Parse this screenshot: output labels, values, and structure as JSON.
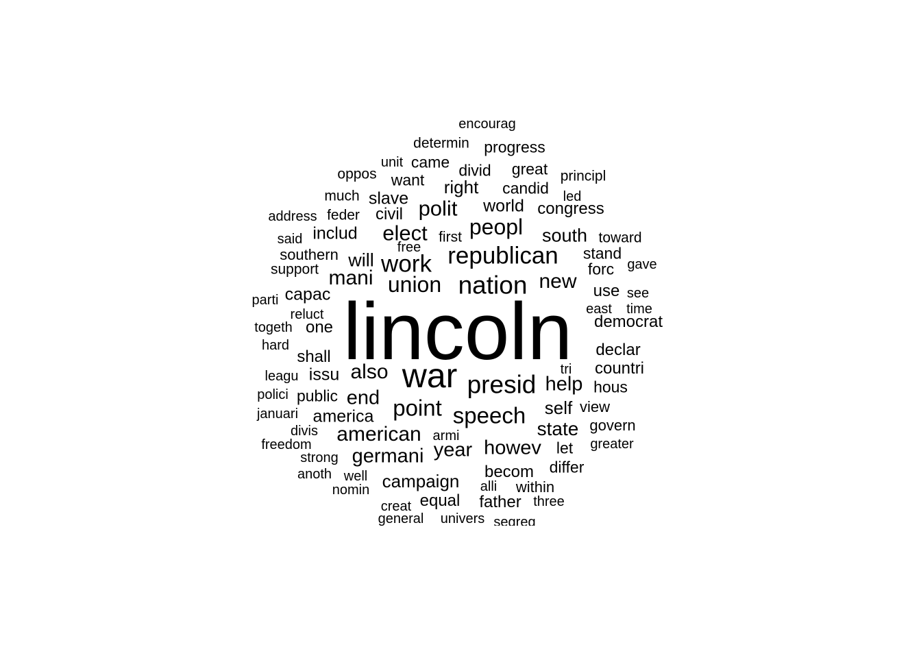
{
  "text_color": "#000000",
  "background_color": "#ffffff",
  "words": [
    {
      "text": "lincoln",
      "rank": 1
    },
    {
      "text": "war",
      "rank": 2
    },
    {
      "text": "presid",
      "rank": 3
    },
    {
      "text": "nation",
      "rank": 4
    },
    {
      "text": "republican",
      "rank": 5
    },
    {
      "text": "work",
      "rank": 6
    },
    {
      "text": "peopl",
      "rank": 7
    },
    {
      "text": "union",
      "rank": 8
    },
    {
      "text": "point",
      "rank": 9
    },
    {
      "text": "speech",
      "rank": 10
    },
    {
      "text": "elect",
      "rank": 11
    },
    {
      "text": "polit",
      "rank": 12
    },
    {
      "text": "new",
      "rank": 13
    },
    {
      "text": "mani",
      "rank": 14
    },
    {
      "text": "also",
      "rank": 15
    },
    {
      "text": "american",
      "rank": 16
    },
    {
      "text": "germani",
      "rank": 17
    },
    {
      "text": "year",
      "rank": 18
    },
    {
      "text": "howev",
      "rank": 19
    },
    {
      "text": "help",
      "rank": 20
    },
    {
      "text": "end",
      "rank": 21
    },
    {
      "text": "will",
      "rank": 22
    },
    {
      "text": "south",
      "rank": 23
    },
    {
      "text": "state",
      "rank": 24
    },
    {
      "text": "campaign",
      "rank": 25
    },
    {
      "text": "self",
      "rank": 26
    },
    {
      "text": "slave",
      "rank": 27
    },
    {
      "text": "right",
      "rank": 28
    },
    {
      "text": "world",
      "rank": 29
    },
    {
      "text": "includ",
      "rank": 30
    },
    {
      "text": "america",
      "rank": 31
    },
    {
      "text": "capac",
      "rank": 32
    },
    {
      "text": "issu",
      "rank": 33
    },
    {
      "text": "shall",
      "rank": 34
    },
    {
      "text": "one",
      "rank": 35
    },
    {
      "text": "countri",
      "rank": 36
    },
    {
      "text": "declar",
      "rank": 37
    },
    {
      "text": "democrat",
      "rank": 38
    },
    {
      "text": "becom",
      "rank": 39
    },
    {
      "text": "equal",
      "rank": 40
    },
    {
      "text": "father",
      "rank": 41
    },
    {
      "text": "civil",
      "rank": 42
    },
    {
      "text": "congress",
      "rank": 43
    },
    {
      "text": "candid",
      "rank": 44
    },
    {
      "text": "great",
      "rank": 45
    },
    {
      "text": "divid",
      "rank": 46
    },
    {
      "text": "progress",
      "rank": 47
    },
    {
      "text": "came",
      "rank": 48
    },
    {
      "text": "want",
      "rank": 49
    },
    {
      "text": "public",
      "rank": 50
    },
    {
      "text": "hous",
      "rank": 51
    },
    {
      "text": "forc",
      "rank": 52
    },
    {
      "text": "stand",
      "rank": 53
    },
    {
      "text": "southern",
      "rank": 54
    },
    {
      "text": "use",
      "rank": 55
    },
    {
      "text": "let",
      "rank": 56
    },
    {
      "text": "differ",
      "rank": 57
    },
    {
      "text": "within",
      "rank": 58
    },
    {
      "text": "view",
      "rank": 59
    },
    {
      "text": "govern",
      "rank": 60
    },
    {
      "text": "determin",
      "rank": 61
    },
    {
      "text": "feder",
      "rank": 62
    },
    {
      "text": "support",
      "rank": 63
    },
    {
      "text": "toward",
      "rank": 64
    },
    {
      "text": "first",
      "rank": 65
    },
    {
      "text": "much",
      "rank": 66
    },
    {
      "text": "oppos",
      "rank": 67
    },
    {
      "text": "principl",
      "rank": 68
    },
    {
      "text": "address",
      "rank": 69
    },
    {
      "text": "said",
      "rank": 70
    },
    {
      "text": "reluct",
      "rank": 71
    },
    {
      "text": "togeth",
      "rank": 72
    },
    {
      "text": "hard",
      "rank": 73
    },
    {
      "text": "leagu",
      "rank": 74
    },
    {
      "text": "polici",
      "rank": 75
    },
    {
      "text": "januari",
      "rank": 76
    },
    {
      "text": "divis",
      "rank": 77
    },
    {
      "text": "freedom",
      "rank": 78
    },
    {
      "text": "strong",
      "rank": 79
    },
    {
      "text": "anoth",
      "rank": 80
    },
    {
      "text": "well",
      "rank": 81
    },
    {
      "text": "nomin",
      "rank": 82
    },
    {
      "text": "creat",
      "rank": 83
    },
    {
      "text": "general",
      "rank": 84
    },
    {
      "text": "univers",
      "rank": 85
    },
    {
      "text": "segreg",
      "rank": 86
    },
    {
      "text": "alli",
      "rank": 87
    },
    {
      "text": "three",
      "rank": 88
    },
    {
      "text": "armi",
      "rank": 89
    },
    {
      "text": "greater",
      "rank": 90
    },
    {
      "text": "tri",
      "rank": 91
    },
    {
      "text": "east",
      "rank": 92
    },
    {
      "text": "time",
      "rank": 93
    },
    {
      "text": "see",
      "rank": 94
    },
    {
      "text": "gave",
      "rank": 95
    },
    {
      "text": "led",
      "rank": 96
    },
    {
      "text": "unit",
      "rank": 97
    },
    {
      "text": "free",
      "rank": 98
    },
    {
      "text": "parti",
      "rank": 99
    },
    {
      "text": "encourag",
      "rank": 100
    }
  ]
}
